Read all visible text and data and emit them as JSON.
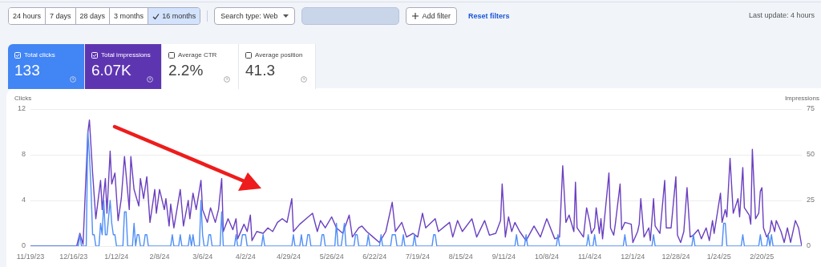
{
  "chart_data": [
    {
      "type": "other",
      "annotations": [
        "24 hours",
        "7 days",
        "28 days",
        "3 months",
        "16 months",
        "Search type: Web",
        "Add filter",
        "Reset filters",
        "Last update: 4 hours",
        "Total clicks",
        "133",
        "Total impressions",
        "6.07K",
        "Average CTR",
        "2.2%",
        "Average position",
        "41.3"
      ]
    },
    {
      "type": "line",
      "ylabel": "Clicks",
      "y2label": "Impressions",
      "grid": "y",
      "marker": "none",
      "xlim": [
        "2023-11-19",
        "2025-03-17"
      ],
      "xticks": [
        {
          "value": "2023-11-19",
          "label": "11/19/23"
        },
        {
          "value": "2023-12-16",
          "label": "12/16/23"
        },
        {
          "value": "2024-01-12",
          "label": "1/12/24"
        },
        {
          "value": "2024-02-08",
          "label": "2/8/24"
        },
        {
          "value": "2024-03-06",
          "label": "3/6/24"
        },
        {
          "value": "2024-04-02",
          "label": "4/2/24"
        },
        {
          "value": "2024-04-29",
          "label": "4/29/24"
        },
        {
          "value": "2024-05-26",
          "label": "5/26/24"
        },
        {
          "value": "2024-06-22",
          "label": "6/22/24"
        },
        {
          "value": "2024-07-19",
          "label": "7/19/24"
        },
        {
          "value": "2024-08-15",
          "label": "8/15/24"
        },
        {
          "value": "2024-09-11",
          "label": "9/11/24"
        },
        {
          "value": "2024-10-08",
          "label": "10/8/24"
        },
        {
          "value": "2024-11-04",
          "label": "11/4/24"
        },
        {
          "value": "2024-12-01",
          "label": "12/1/24"
        },
        {
          "value": "2024-12-28",
          "label": "12/28/24"
        },
        {
          "value": "2025-01-24",
          "label": "1/24/25"
        },
        {
          "value": "2025-02-20",
          "label": "2/20/25"
        }
      ],
      "ylim": [
        0,
        12
      ],
      "yticks": [
        0,
        4,
        8,
        12
      ],
      "y2lim": [
        0,
        75
      ],
      "y2ticks": [
        0,
        25,
        50,
        75
      ],
      "series": [
        {
          "color": "#4e8ef7",
          "axis": "y",
          "x": [
            "2023-11-19",
            "2023-12-19",
            "2023-12-20",
            "2023-12-21",
            "2023-12-24",
            "2023-12-25",
            "2023-12-26",
            "2023-12-27",
            "2023-12-28",
            "2023-12-29",
            "2023-12-30",
            "2024-01-01",
            "2024-01-02",
            "2024-01-03",
            "2024-01-04",
            "2024-01-05",
            "2024-01-06",
            "2024-01-08",
            "2024-01-09",
            "2024-01-10",
            "2024-01-11",
            "2024-01-12",
            "2024-01-16",
            "2024-01-17",
            "2024-01-18",
            "2024-01-19",
            "2024-01-22",
            "2024-01-23",
            "2024-01-24",
            "2024-01-25",
            "2024-01-26",
            "2024-01-27",
            "2024-01-29",
            "2024-01-30",
            "2024-01-31",
            "2024-02-01",
            "2024-02-15",
            "2024-02-16",
            "2024-02-17",
            "2024-02-20",
            "2024-02-21",
            "2024-02-22",
            "2024-02-26",
            "2024-02-27",
            "2024-02-28",
            "2024-02-29",
            "2024-03-01",
            "2024-03-04",
            "2024-03-05",
            "2024-03-06",
            "2024-03-07",
            "2024-03-09",
            "2024-03-10",
            "2024-03-11",
            "2024-03-12",
            "2024-03-17",
            "2024-03-18",
            "2024-03-19",
            "2024-03-26",
            "2024-03-27",
            "2024-03-28",
            "2024-03-30",
            "2024-03-31",
            "2024-04-01",
            "2024-04-02",
            "2024-04-03",
            "2024-04-12",
            "2024-04-13",
            "2024-04-14",
            "2024-05-01",
            "2024-05-02",
            "2024-05-03",
            "2024-05-06",
            "2024-05-07",
            "2024-05-08",
            "2024-05-10",
            "2024-05-11",
            "2024-05-12",
            "2024-05-13",
            "2024-05-19",
            "2024-05-20",
            "2024-05-21",
            "2024-05-22",
            "2024-05-28",
            "2024-05-29",
            "2024-05-30",
            "2024-06-01",
            "2024-06-02",
            "2024-06-03",
            "2024-06-04",
            "2024-06-09",
            "2024-06-10",
            "2024-06-11",
            "2024-06-12",
            "2024-06-17",
            "2024-06-18",
            "2024-06-19",
            "2024-06-25",
            "2024-06-26",
            "2024-06-27",
            "2024-07-02",
            "2024-07-03",
            "2024-07-04",
            "2024-07-05",
            "2024-07-06",
            "2024-07-09",
            "2024-07-10",
            "2024-07-11",
            "2024-07-16",
            "2024-07-17",
            "2024-07-18",
            "2024-07-28",
            "2024-07-29",
            "2024-07-30",
            "2024-07-31",
            "2024-09-18",
            "2024-09-19",
            "2024-09-20",
            "2024-09-24",
            "2024-09-25",
            "2024-09-26",
            "2024-10-14",
            "2024-10-15",
            "2024-10-16",
            "2024-11-02",
            "2024-11-03",
            "2024-11-04",
            "2024-11-06",
            "2024-11-07",
            "2024-11-08",
            "2024-11-25",
            "2024-11-26",
            "2024-11-27",
            "2024-12-13",
            "2024-12-14",
            "2024-12-15",
            "2025-01-07",
            "2025-01-08",
            "2025-01-09",
            "2025-01-26",
            "2025-01-27",
            "2025-01-28",
            "2025-01-29",
            "2025-02-07",
            "2025-02-08",
            "2025-02-09",
            "2025-02-18",
            "2025-02-19",
            "2025-02-20",
            "2025-02-23",
            "2025-02-24",
            "2025-02-25",
            "2025-02-26",
            "2025-02-27",
            "2025-03-17"
          ],
          "values": [
            0,
            0,
            1,
            0,
            0,
            10,
            8,
            5,
            1,
            1,
            0,
            0,
            2,
            1,
            4,
            1,
            1,
            4,
            2,
            1,
            1,
            0,
            0,
            3,
            3,
            0,
            0,
            2,
            0,
            1,
            1,
            0,
            0,
            1,
            1,
            0,
            0,
            1,
            0,
            0,
            1,
            0,
            0,
            1,
            0,
            1,
            0,
            0,
            4,
            1,
            0,
            0,
            1,
            1,
            0,
            0,
            3,
            0,
            0,
            1,
            0,
            0,
            1,
            1,
            1,
            0,
            0,
            1,
            0,
            0,
            1,
            0,
            0,
            1,
            0,
            0,
            1,
            1,
            0,
            0,
            1,
            1,
            0,
            0,
            2,
            0,
            0,
            1,
            2,
            0,
            0,
            1,
            1,
            0,
            0,
            1,
            0,
            0,
            1,
            0,
            0,
            1,
            1,
            1,
            0,
            0,
            1,
            0,
            0,
            1,
            0,
            0,
            1,
            1,
            0,
            0,
            1,
            0,
            0,
            1,
            0,
            0,
            1,
            0,
            0,
            1,
            0,
            0,
            1,
            0,
            0,
            1,
            0,
            0,
            1,
            0,
            0,
            1,
            0,
            0,
            2,
            2,
            0,
            0,
            1,
            0,
            0,
            1,
            0,
            0,
            1,
            0,
            1,
            0,
            0
          ]
        },
        {
          "color": "#6a3fc0",
          "axis": "y2",
          "x": [
            "2023-11-19",
            "2023-12-18",
            "2023-12-20",
            "2023-12-22",
            "2023-12-25",
            "2023-12-26",
            "2023-12-28",
            "2023-12-30",
            "2024-01-02",
            "2024-01-03",
            "2024-01-05",
            "2024-01-06",
            "2024-01-08",
            "2024-01-09",
            "2024-01-11",
            "2024-01-13",
            "2024-01-15",
            "2024-01-17",
            "2024-01-20",
            "2024-01-21",
            "2024-01-23",
            "2024-01-26",
            "2024-01-27",
            "2024-01-29",
            "2024-01-31",
            "2024-02-02",
            "2024-02-05",
            "2024-02-06",
            "2024-02-08",
            "2024-02-11",
            "2024-02-12",
            "2024-02-14",
            "2024-02-15",
            "2024-02-17",
            "2024-02-21",
            "2024-02-23",
            "2024-02-26",
            "2024-02-27",
            "2024-02-29",
            "2024-03-02",
            "2024-03-05",
            "2024-03-06",
            "2024-03-09",
            "2024-03-11",
            "2024-03-14",
            "2024-03-16",
            "2024-03-18",
            "2024-03-19",
            "2024-03-22",
            "2024-03-25",
            "2024-03-27",
            "2024-03-28",
            "2024-04-01",
            "2024-04-03",
            "2024-04-05",
            "2024-04-06",
            "2024-04-09",
            "2024-04-13",
            "2024-04-16",
            "2024-04-19",
            "2024-04-22",
            "2024-04-25",
            "2024-04-28",
            "2024-05-01",
            "2024-05-02",
            "2024-05-06",
            "2024-05-10",
            "2024-05-14",
            "2024-05-17",
            "2024-05-19",
            "2024-05-22",
            "2024-05-26",
            "2024-05-29",
            "2024-06-02",
            "2024-06-06",
            "2024-06-08",
            "2024-06-12",
            "2024-06-14",
            "2024-06-17",
            "2024-06-21",
            "2024-06-25",
            "2024-06-29",
            "2024-07-03",
            "2024-07-05",
            "2024-07-09",
            "2024-07-12",
            "2024-07-16",
            "2024-07-19",
            "2024-07-22",
            "2024-07-24",
            "2024-07-30",
            "2024-08-01",
            "2024-08-08",
            "2024-08-10",
            "2024-08-13",
            "2024-08-16",
            "2024-08-22",
            "2024-08-25",
            "2024-08-30",
            "2024-09-02",
            "2024-09-06",
            "2024-09-09",
            "2024-09-10",
            "2024-09-12",
            "2024-09-14",
            "2024-09-16",
            "2024-09-18",
            "2024-09-21",
            "2024-09-25",
            "2024-09-30",
            "2024-10-04",
            "2024-10-08",
            "2024-10-13",
            "2024-10-16",
            "2024-10-18",
            "2024-10-20",
            "2024-10-22",
            "2024-10-25",
            "2024-10-26",
            "2024-10-27",
            "2024-10-31",
            "2024-11-02",
            "2024-11-04",
            "2024-11-05",
            "2024-11-07",
            "2024-11-08",
            "2024-11-10",
            "2024-11-11",
            "2024-11-12",
            "2024-11-16",
            "2024-11-17",
            "2024-11-19",
            "2024-11-20",
            "2024-11-23",
            "2024-11-24",
            "2024-11-26",
            "2024-11-30",
            "2024-12-01",
            "2024-12-04",
            "2024-12-05",
            "2024-12-06",
            "2024-12-08",
            "2024-12-11",
            "2024-12-12",
            "2024-12-14",
            "2024-12-15",
            "2024-12-18",
            "2024-12-21",
            "2024-12-22",
            "2024-12-25",
            "2024-12-28",
            "2024-12-29",
            "2024-12-31",
            "2025-01-02",
            "2025-01-04",
            "2025-01-06",
            "2025-01-08",
            "2025-01-11",
            "2025-01-13",
            "2025-01-16",
            "2025-01-18",
            "2025-01-20",
            "2025-01-21",
            "2025-01-25",
            "2025-01-26",
            "2025-01-28",
            "2025-01-29",
            "2025-01-31",
            "2025-02-02",
            "2025-02-05",
            "2025-02-06",
            "2025-02-08",
            "2025-02-09",
            "2025-02-12",
            "2025-02-13",
            "2025-02-14",
            "2025-02-16",
            "2025-02-18",
            "2025-02-19",
            "2025-02-20",
            "2025-02-21",
            "2025-02-23",
            "2025-02-25",
            "2025-02-26",
            "2025-02-28",
            "2025-03-01",
            "2025-03-04",
            "2025-03-06",
            "2025-03-08",
            "2025-03-10",
            "2025-03-13",
            "2025-03-15",
            "2025-03-17"
          ],
          "values": [
            0,
            0,
            7,
            1,
            62,
            69,
            40,
            15,
            36,
            20,
            37,
            18,
            52,
            34,
            40,
            14,
            26,
            49,
            20,
            49,
            31,
            22,
            37,
            26,
            38,
            13,
            31,
            18,
            31,
            20,
            26,
            11,
            23,
            10,
            31,
            11,
            25,
            15,
            29,
            20,
            36,
            20,
            13,
            21,
            13,
            20,
            37,
            8,
            15,
            9,
            15,
            4,
            12,
            8,
            17,
            3,
            8,
            7,
            10,
            8,
            13,
            15,
            13,
            26,
            8,
            12,
            15,
            18,
            8,
            14,
            10,
            16,
            10,
            7,
            17,
            5,
            10,
            11,
            8,
            5,
            2,
            8,
            24,
            8,
            13,
            5,
            7,
            5,
            18,
            10,
            15,
            8,
            13,
            5,
            14,
            8,
            15,
            5,
            14,
            6,
            7,
            14,
            34,
            5,
            16,
            8,
            13,
            8,
            3,
            11,
            5,
            15,
            4,
            5,
            44,
            13,
            17,
            8,
            35,
            10,
            5,
            21,
            13,
            7,
            10,
            21,
            7,
            15,
            4,
            40,
            10,
            6,
            12,
            34,
            9,
            13,
            12,
            2,
            8,
            12,
            26,
            5,
            10,
            3,
            26,
            11,
            7,
            36,
            10,
            10,
            38,
            6,
            2,
            8,
            32,
            5,
            6,
            9,
            4,
            10,
            3,
            14,
            7,
            29,
            13,
            20,
            16,
            48,
            18,
            26,
            16,
            43,
            21,
            17,
            12,
            53,
            15,
            18,
            30,
            32,
            10,
            5,
            8,
            14,
            8,
            14,
            8,
            2,
            10,
            2,
            14,
            10,
            0
          ]
        }
      ]
    }
  ]
}
